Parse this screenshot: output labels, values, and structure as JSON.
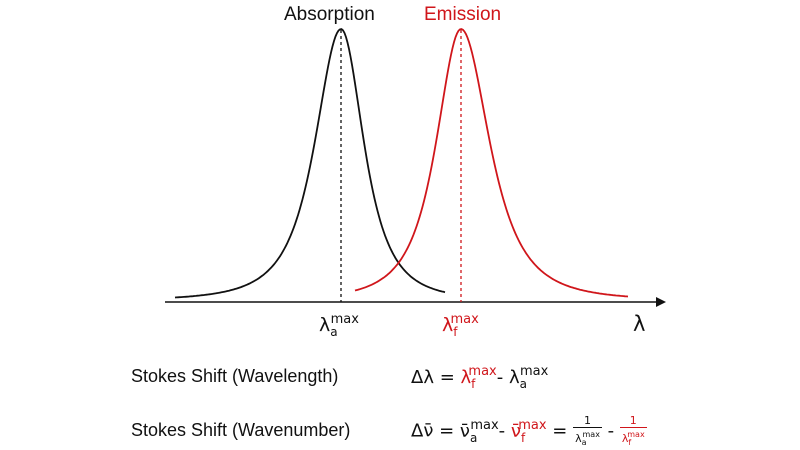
{
  "labels": {
    "absorption": "Absorption",
    "emission": "Emission",
    "lambda_axis": "λ",
    "lambda_symbol": "λ",
    "sub_a": "a",
    "sub_f": "f",
    "sup_max": "max"
  },
  "equations": {
    "wavelength_label": "Stokes Shift (Wavelength)",
    "wavenumber_label": "Stokes Shift (Wavenumber)",
    "delta_lambda": "Δλ =",
    "delta_nu": "Δν̄ =",
    "nu_bar": "ν̄",
    "minus": "-",
    "equals": "=",
    "one": "1"
  },
  "colors": {
    "absorption": "#111111",
    "emission": "#d0161b"
  }
}
